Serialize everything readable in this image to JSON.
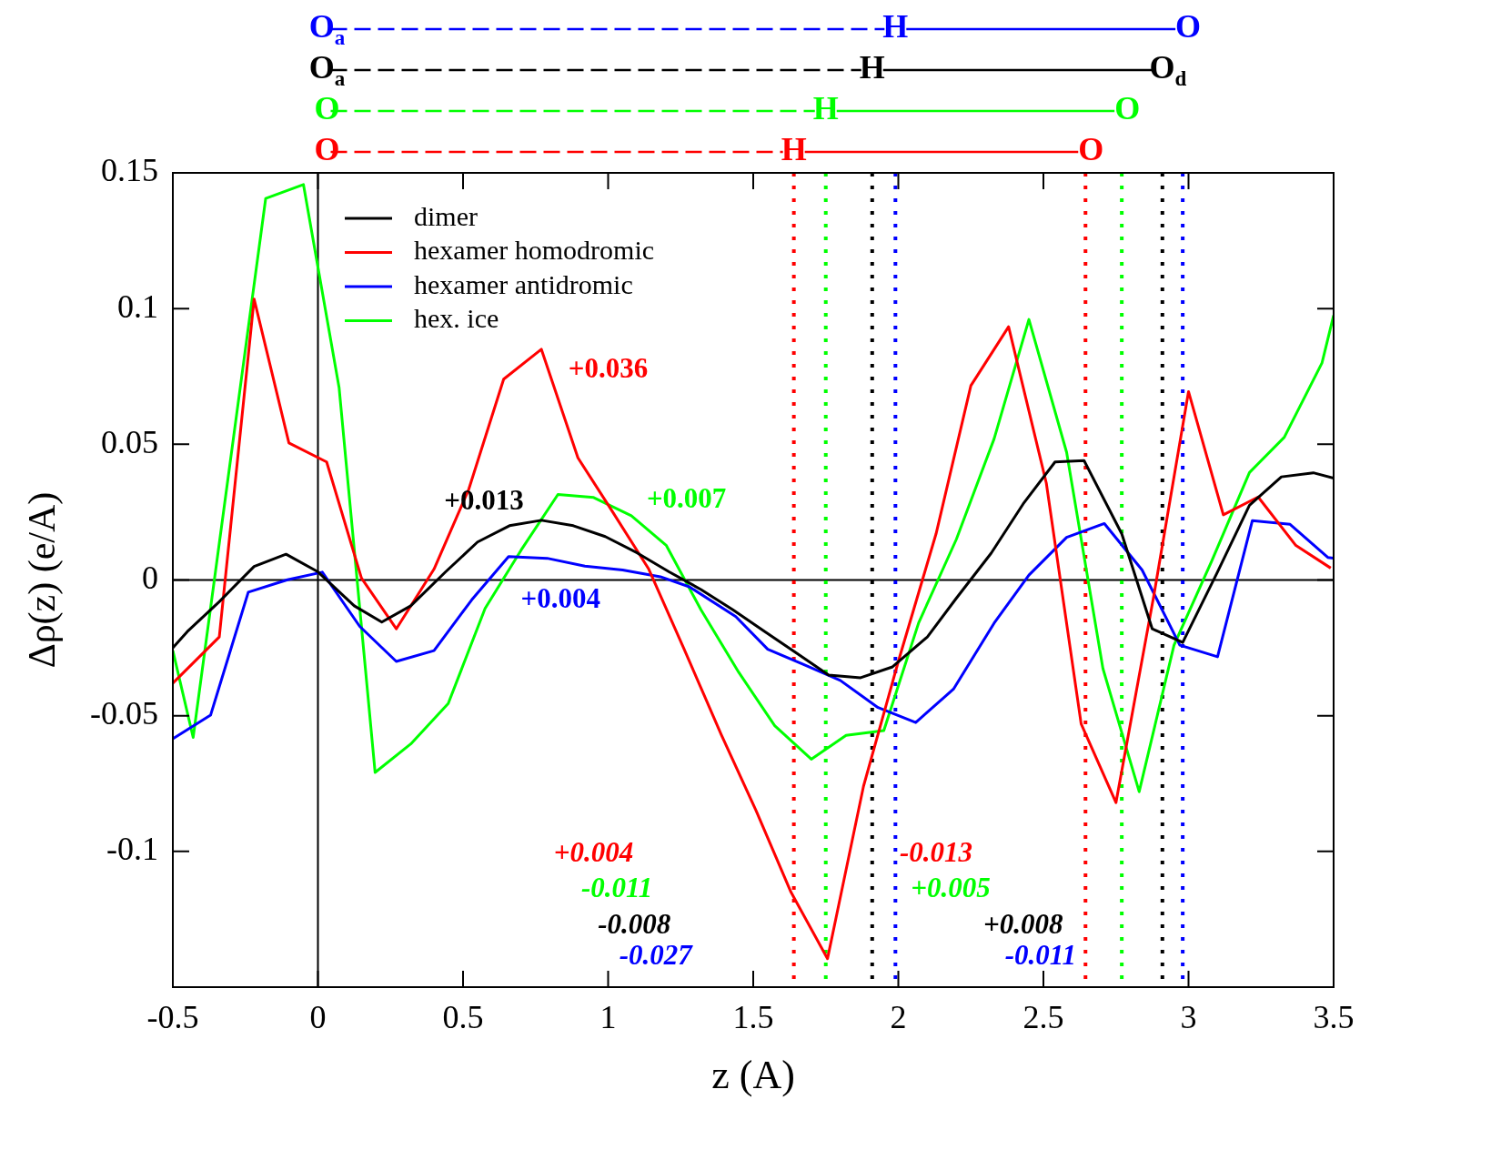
{
  "chart_data": {
    "type": "line",
    "xlabel": "z (A)",
    "ylabel": "Δρ(z) (e/A)",
    "xlim": [
      -0.5,
      3.5
    ],
    "xticks": [
      -0.5,
      0,
      0.5,
      1,
      1.5,
      2,
      2.5,
      3,
      3.5
    ],
    "ylim": [
      -0.15,
      0.15
    ],
    "yticks": [
      -0.1,
      -0.05,
      0,
      0.05,
      0.1,
      0.15
    ],
    "grid": false,
    "legend": "top left",
    "marker": "none",
    "line_style": "solid",
    "series": [
      {
        "name": "dimer",
        "color": "#000000",
        "x": [
          -0.5,
          -0.45,
          -0.34,
          -0.22,
          -0.11,
          0,
          0.125,
          0.22,
          0.32,
          0.44,
          0.55,
          0.66,
          0.77,
          0.88,
          0.99,
          1.1,
          1.21,
          1.32,
          1.43,
          1.54,
          1.65,
          1.76,
          1.87,
          1.98,
          2.1,
          2.2,
          2.32,
          2.43,
          2.54,
          2.64,
          2.77,
          2.875,
          2.98,
          3.1,
          3.21,
          3.32,
          3.43,
          3.5
        ],
        "values": [
          -0.025,
          -0.019,
          -0.008,
          0.005,
          0.0095,
          0.003,
          -0.0095,
          -0.0155,
          -0.0095,
          0.003,
          0.014,
          0.02,
          0.022,
          0.02,
          0.016,
          0.01,
          0.003,
          -0.0035,
          -0.011,
          -0.019,
          -0.027,
          -0.035,
          -0.036,
          -0.032,
          -0.021,
          -0.0067,
          0.0099,
          0.028,
          0.0435,
          0.044,
          0.017,
          -0.018,
          -0.023,
          0.003,
          0.0275,
          0.038,
          0.0395,
          0.0375
        ]
      },
      {
        "name": "hexamer homodromic",
        "color": "#ff0000",
        "x": [
          -0.5,
          -0.34,
          -0.22,
          -0.1,
          0.03,
          0.15,
          0.27,
          0.4,
          0.52,
          0.64,
          0.77,
          0.896,
          1.01,
          1.14,
          1.26,
          1.39,
          1.51,
          1.63,
          1.756,
          1.88,
          2.0,
          2.13,
          2.25,
          2.38,
          2.51,
          2.63,
          2.75,
          2.88,
          3.0,
          3.12,
          3.24,
          3.37,
          3.49
        ],
        "values": [
          -0.038,
          -0.021,
          0.1035,
          0.0505,
          0.0435,
          0.0007,
          -0.018,
          0.004,
          0.0335,
          0.074,
          0.085,
          0.045,
          0.026,
          0.004,
          -0.025,
          -0.057,
          -0.085,
          -0.115,
          -0.1395,
          -0.076,
          -0.03,
          0.017,
          0.0716,
          0.0933,
          0.0357,
          -0.053,
          -0.082,
          -0.006,
          0.0694,
          0.024,
          0.0306,
          0.0127,
          0.0044
        ]
      },
      {
        "name": "hexamer antidromic",
        "color": "#0000ff",
        "x": [
          -0.5,
          -0.37,
          -0.24,
          -0.105,
          0.015,
          0.144,
          0.27,
          0.4,
          0.53,
          0.657,
          0.79,
          0.92,
          1.05,
          1.18,
          1.28,
          1.44,
          1.55,
          1.67,
          1.8,
          1.93,
          2.06,
          2.19,
          2.33,
          2.45,
          2.58,
          2.71,
          2.84,
          2.97,
          3.1,
          3.22,
          3.35,
          3.48,
          3.5
        ],
        "values": [
          -0.0585,
          -0.0498,
          -0.0045,
          0.0001,
          0.0029,
          -0.0171,
          -0.03,
          -0.026,
          -0.0073,
          0.0086,
          0.008,
          0.0051,
          0.0037,
          0.0012,
          -0.0025,
          -0.0135,
          -0.0255,
          -0.031,
          -0.037,
          -0.047,
          -0.0525,
          -0.0402,
          -0.0159,
          0.0018,
          0.0157,
          0.0208,
          0.0037,
          -0.024,
          -0.0283,
          0.0219,
          0.0205,
          0.0083,
          0.008
        ]
      },
      {
        "name": "hex. ice",
        "color": "#00ff00",
        "x": [
          -0.5,
          -0.43,
          -0.18,
          -0.05,
          0.073,
          0.197,
          0.32,
          0.449,
          0.576,
          0.7,
          0.827,
          0.95,
          1.08,
          1.2,
          1.32,
          1.45,
          1.574,
          1.7,
          1.82,
          1.95,
          2.07,
          2.2,
          2.33,
          2.45,
          2.58,
          2.705,
          2.83,
          2.95,
          3.08,
          3.21,
          3.33,
          3.46,
          3.5
        ],
        "values": [
          -0.026,
          -0.058,
          0.1406,
          0.1457,
          0.0708,
          -0.0709,
          -0.0604,
          -0.0455,
          -0.0105,
          0.011,
          0.0315,
          0.0304,
          0.0237,
          0.0128,
          -0.011,
          -0.034,
          -0.0537,
          -0.066,
          -0.0572,
          -0.0555,
          -0.0158,
          0.015,
          0.052,
          0.096,
          0.047,
          -0.0326,
          -0.078,
          -0.024,
          0.007,
          0.0396,
          0.0526,
          0.08,
          0.0975
        ]
      }
    ],
    "ref_lines": [
      {
        "axis": "y",
        "value": 0,
        "color": "#000000",
        "line_style": "solid"
      },
      {
        "axis": "x",
        "value": 0,
        "color": "#000000",
        "line_style": "solid"
      },
      {
        "axis": "x",
        "value": 1.64,
        "color": "#ff0000",
        "line_style": "dotted"
      },
      {
        "axis": "x",
        "value": 1.75,
        "color": "#00ff00",
        "line_style": "dotted"
      },
      {
        "axis": "x",
        "value": 1.91,
        "color": "#000000",
        "line_style": "dotted"
      },
      {
        "axis": "x",
        "value": 1.99,
        "color": "#0000ff",
        "line_style": "dotted"
      },
      {
        "axis": "x",
        "value": 2.645,
        "color": "#ff0000",
        "line_style": "dotted"
      },
      {
        "axis": "x",
        "value": 2.77,
        "color": "#00ff00",
        "line_style": "dotted"
      },
      {
        "axis": "x",
        "value": 2.91,
        "color": "#000000",
        "line_style": "dotted"
      },
      {
        "axis": "x",
        "value": 2.98,
        "color": "#0000ff",
        "line_style": "dotted"
      }
    ],
    "annotations": [
      "O$_{a}$",
      "H",
      "O",
      "O$_{a}$",
      "H",
      "O$_{d}$",
      "O",
      "H",
      "O",
      "O",
      "H",
      "O",
      "+0.013",
      "+0.036",
      "+0.004",
      "+0.007",
      "-0.008",
      "+0.004",
      "-0.027",
      "-0.011",
      "+0.008",
      "-0.013",
      "-0.011",
      "+0.005"
    ]
  }
}
